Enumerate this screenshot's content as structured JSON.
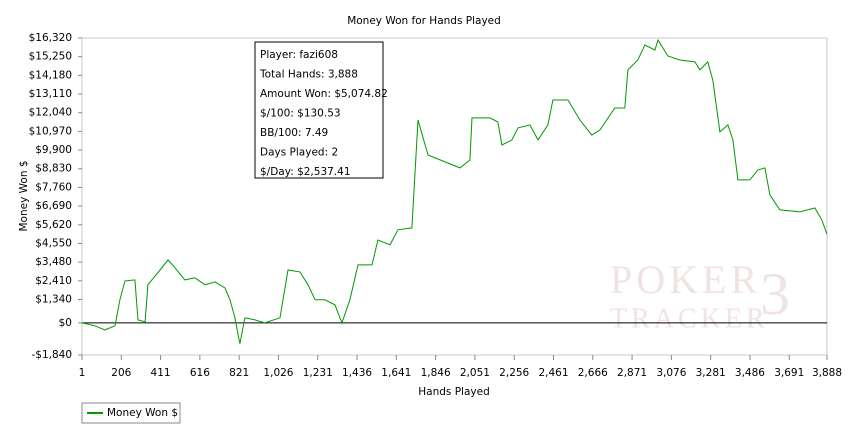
{
  "chart_data": {
    "type": "line",
    "title": "Money Won for Hands Played",
    "x_label": "Hands Played",
    "y_label": "Money Won $",
    "grid": false,
    "x": [
      1,
      69,
      120,
      173,
      199,
      225,
      277,
      293,
      330,
      345,
      408,
      450,
      486,
      538,
      590,
      643,
      695,
      747,
      773,
      799,
      825,
      851,
      903,
      955,
      1034,
      1076,
      1138,
      1180,
      1217,
      1269,
      1321,
      1357,
      1399,
      1441,
      1514,
      1545,
      1608,
      1649,
      1722,
      1754,
      1806,
      1895,
      1973,
      2025,
      2036,
      2130,
      2171,
      2192,
      2244,
      2276,
      2338,
      2380,
      2432,
      2458,
      2536,
      2599,
      2661,
      2703,
      2781,
      2833,
      2849,
      2901,
      2938,
      2990,
      3006,
      3058,
      3120,
      3199,
      3225,
      3266,
      3292,
      3329,
      3371,
      3397,
      3423,
      3485,
      3527,
      3564,
      3590,
      3642,
      3746,
      3825,
      3861,
      3888
    ],
    "series": [
      {
        "name": "Money Won $",
        "color": "#009900",
        "values": [
          0,
          -170,
          -400,
          -170,
          1320,
          2400,
          2460,
          170,
          60,
          2180,
          3030,
          3610,
          3150,
          2460,
          2580,
          2180,
          2350,
          2000,
          1320,
          290,
          -1200,
          290,
          170,
          0,
          290,
          3030,
          2920,
          2180,
          1320,
          1320,
          1030,
          0,
          1320,
          3320,
          3320,
          4750,
          4470,
          5330,
          5440,
          11620,
          9620,
          9220,
          8880,
          9330,
          11740,
          11740,
          11510,
          10190,
          10480,
          11170,
          11340,
          10480,
          11340,
          12770,
          12770,
          11620,
          10760,
          11050,
          12310,
          12310,
          14490,
          15060,
          15920,
          15630,
          16200,
          15290,
          15060,
          14950,
          14490,
          14950,
          13910,
          10940,
          11340,
          10480,
          8190,
          8190,
          8760,
          8880,
          7330,
          6470,
          6360,
          6580,
          5900,
          5075
        ]
      }
    ],
    "xlim": [
      1,
      3888
    ],
    "xticks": [
      1,
      206,
      411,
      616,
      821,
      {
        "value": 1026,
        "label": "1,026"
      },
      {
        "value": 1231,
        "label": "1,231"
      },
      {
        "value": 1436,
        "label": "1,436"
      },
      {
        "value": 1641,
        "label": "1,641"
      },
      {
        "value": 1846,
        "label": "1,846"
      },
      {
        "value": 2051,
        "label": "2,051"
      },
      {
        "value": 2256,
        "label": "2,256"
      },
      {
        "value": 2461,
        "label": "2,461"
      },
      {
        "value": 2666,
        "label": "2,666"
      },
      {
        "value": 2871,
        "label": "2,871"
      },
      {
        "value": 3076,
        "label": "3,076"
      },
      {
        "value": 3281,
        "label": "3,281"
      },
      {
        "value": 3486,
        "label": "3,486"
      },
      {
        "value": 3691,
        "label": "3,691"
      },
      {
        "value": 3888,
        "label": "3,888"
      }
    ],
    "ylim": [
      -1840,
      16320
    ],
    "yticks": [
      {
        "value": -1840,
        "label": "-$1,840"
      },
      {
        "value": 0,
        "label": "$0"
      },
      {
        "value": 1340,
        "label": "$1,340"
      },
      {
        "value": 2410,
        "label": "$2,410"
      },
      {
        "value": 3480,
        "label": "$3,480"
      },
      {
        "value": 4550,
        "label": "$4,550"
      },
      {
        "value": 5620,
        "label": "$5,620"
      },
      {
        "value": 6690,
        "label": "$6,690"
      },
      {
        "value": 7760,
        "label": "$7,760"
      },
      {
        "value": 8830,
        "label": "$8,830"
      },
      {
        "value": 9900,
        "label": "$9,900"
      },
      {
        "value": 10970,
        "label": "$10,970"
      },
      {
        "value": 12040,
        "label": "$12,040"
      },
      {
        "value": 13110,
        "label": "$13,110"
      },
      {
        "value": 14180,
        "label": "$14,180"
      },
      {
        "value": 15250,
        "label": "$15,250"
      },
      {
        "value": 16320,
        "label": "$16,320"
      }
    ],
    "info_box": [
      "Player: fazi608",
      "Total Hands: 3,888",
      "Amount Won: $5,074.82",
      "$/100: $130.53",
      "BB/100: 7.49",
      "Days Played: 2",
      "$/Day: $2,537.41"
    ],
    "watermark": [
      "POKER",
      "TRACKER",
      "3"
    ]
  }
}
